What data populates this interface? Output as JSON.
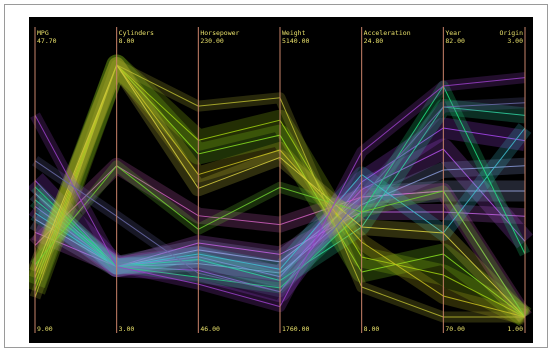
{
  "chart_data": {
    "type": "parallel-coordinates",
    "title": "",
    "axes": [
      {
        "name": "MPG",
        "max": "47.70",
        "min": "9.00"
      },
      {
        "name": "Cylinders",
        "max": "8.00",
        "min": "3.00"
      },
      {
        "name": "Horsepower",
        "max": "230.00",
        "min": "46.00"
      },
      {
        "name": "Weight",
        "max": "5140.00",
        "min": "1760.00"
      },
      {
        "name": "Acceleration",
        "max": "24.80",
        "min": "8.00"
      },
      {
        "name": "Year",
        "max": "82.00",
        "min": "70.00"
      },
      {
        "name": "Origin",
        "max": "3.00",
        "min": "1.00"
      }
    ],
    "value_ranges": {
      "MPG": [
        9,
        47.7
      ],
      "Cylinders": [
        3,
        8
      ],
      "Horsepower": [
        46,
        230
      ],
      "Weight": [
        1760,
        5140
      ],
      "Acceleration": [
        8,
        24.8
      ],
      "Year": [
        70,
        82
      ],
      "Origin": [
        1,
        3
      ]
    },
    "series": [
      {
        "color": "#b050e8",
        "values": [
          26,
          4,
          90,
          2300,
          16.5,
          78,
          1.6
        ],
        "weight": 3
      },
      {
        "color": "#a848f0",
        "values": [
          30,
          4,
          80,
          2100,
          17,
          79,
          2.4
        ],
        "weight": 3
      },
      {
        "color": "#9aa8e0",
        "values": [
          24,
          4,
          95,
          2500,
          16,
          76,
          2.0
        ],
        "weight": 3
      },
      {
        "color": "#8a9ad8",
        "values": [
          28,
          4,
          85,
          2350,
          15.5,
          77,
          2.2
        ],
        "weight": 2
      },
      {
        "color": "#c060e0",
        "values": [
          22,
          4,
          100,
          2600,
          15,
          75,
          1.8
        ],
        "weight": 2
      },
      {
        "color": "#d060c0",
        "values": [
          20,
          6,
          120,
          3000,
          16,
          76,
          1.0
        ],
        "weight": 2
      },
      {
        "color": "#30d0a0",
        "values": [
          27,
          4,
          88,
          2250,
          14,
          80,
          2.6
        ],
        "weight": 2
      },
      {
        "color": "#40c0d0",
        "values": [
          25,
          4,
          92,
          2400,
          17.5,
          74,
          2.5
        ],
        "weight": 2
      },
      {
        "color": "#20e080",
        "values": [
          29,
          4,
          75,
          2150,
          15,
          81,
          1.5
        ],
        "weight": 1
      },
      {
        "color": "#88e020",
        "values": [
          14,
          8,
          165,
          4200,
          11,
          73,
          1.0
        ],
        "weight": 3
      },
      {
        "color": "#a0d010",
        "values": [
          13,
          8,
          175,
          4400,
          12,
          72,
          1.0
        ],
        "weight": 3
      },
      {
        "color": "#c8c020",
        "values": [
          15,
          8,
          150,
          4000,
          13,
          71,
          1.0
        ],
        "weight": 2
      },
      {
        "color": "#d8d040",
        "values": [
          16,
          8,
          140,
          3900,
          14,
          74,
          1.0
        ],
        "weight": 2
      },
      {
        "color": "#70d030",
        "values": [
          17,
          6,
          110,
          3500,
          15,
          76,
          1.0
        ],
        "weight": 1
      },
      {
        "color": "#b8b830",
        "values": [
          12,
          8,
          200,
          4700,
          10,
          70,
          1.0
        ],
        "weight": 1
      },
      {
        "color": "#9a40c8",
        "values": [
          40,
          4,
          70,
          1900,
          19,
          81,
          2.9
        ],
        "weight": 1
      },
      {
        "color": "#6a6aa8",
        "values": [
          33,
          5,
          78,
          2100,
          16,
          80,
          2.7
        ],
        "weight": 1
      }
    ]
  }
}
